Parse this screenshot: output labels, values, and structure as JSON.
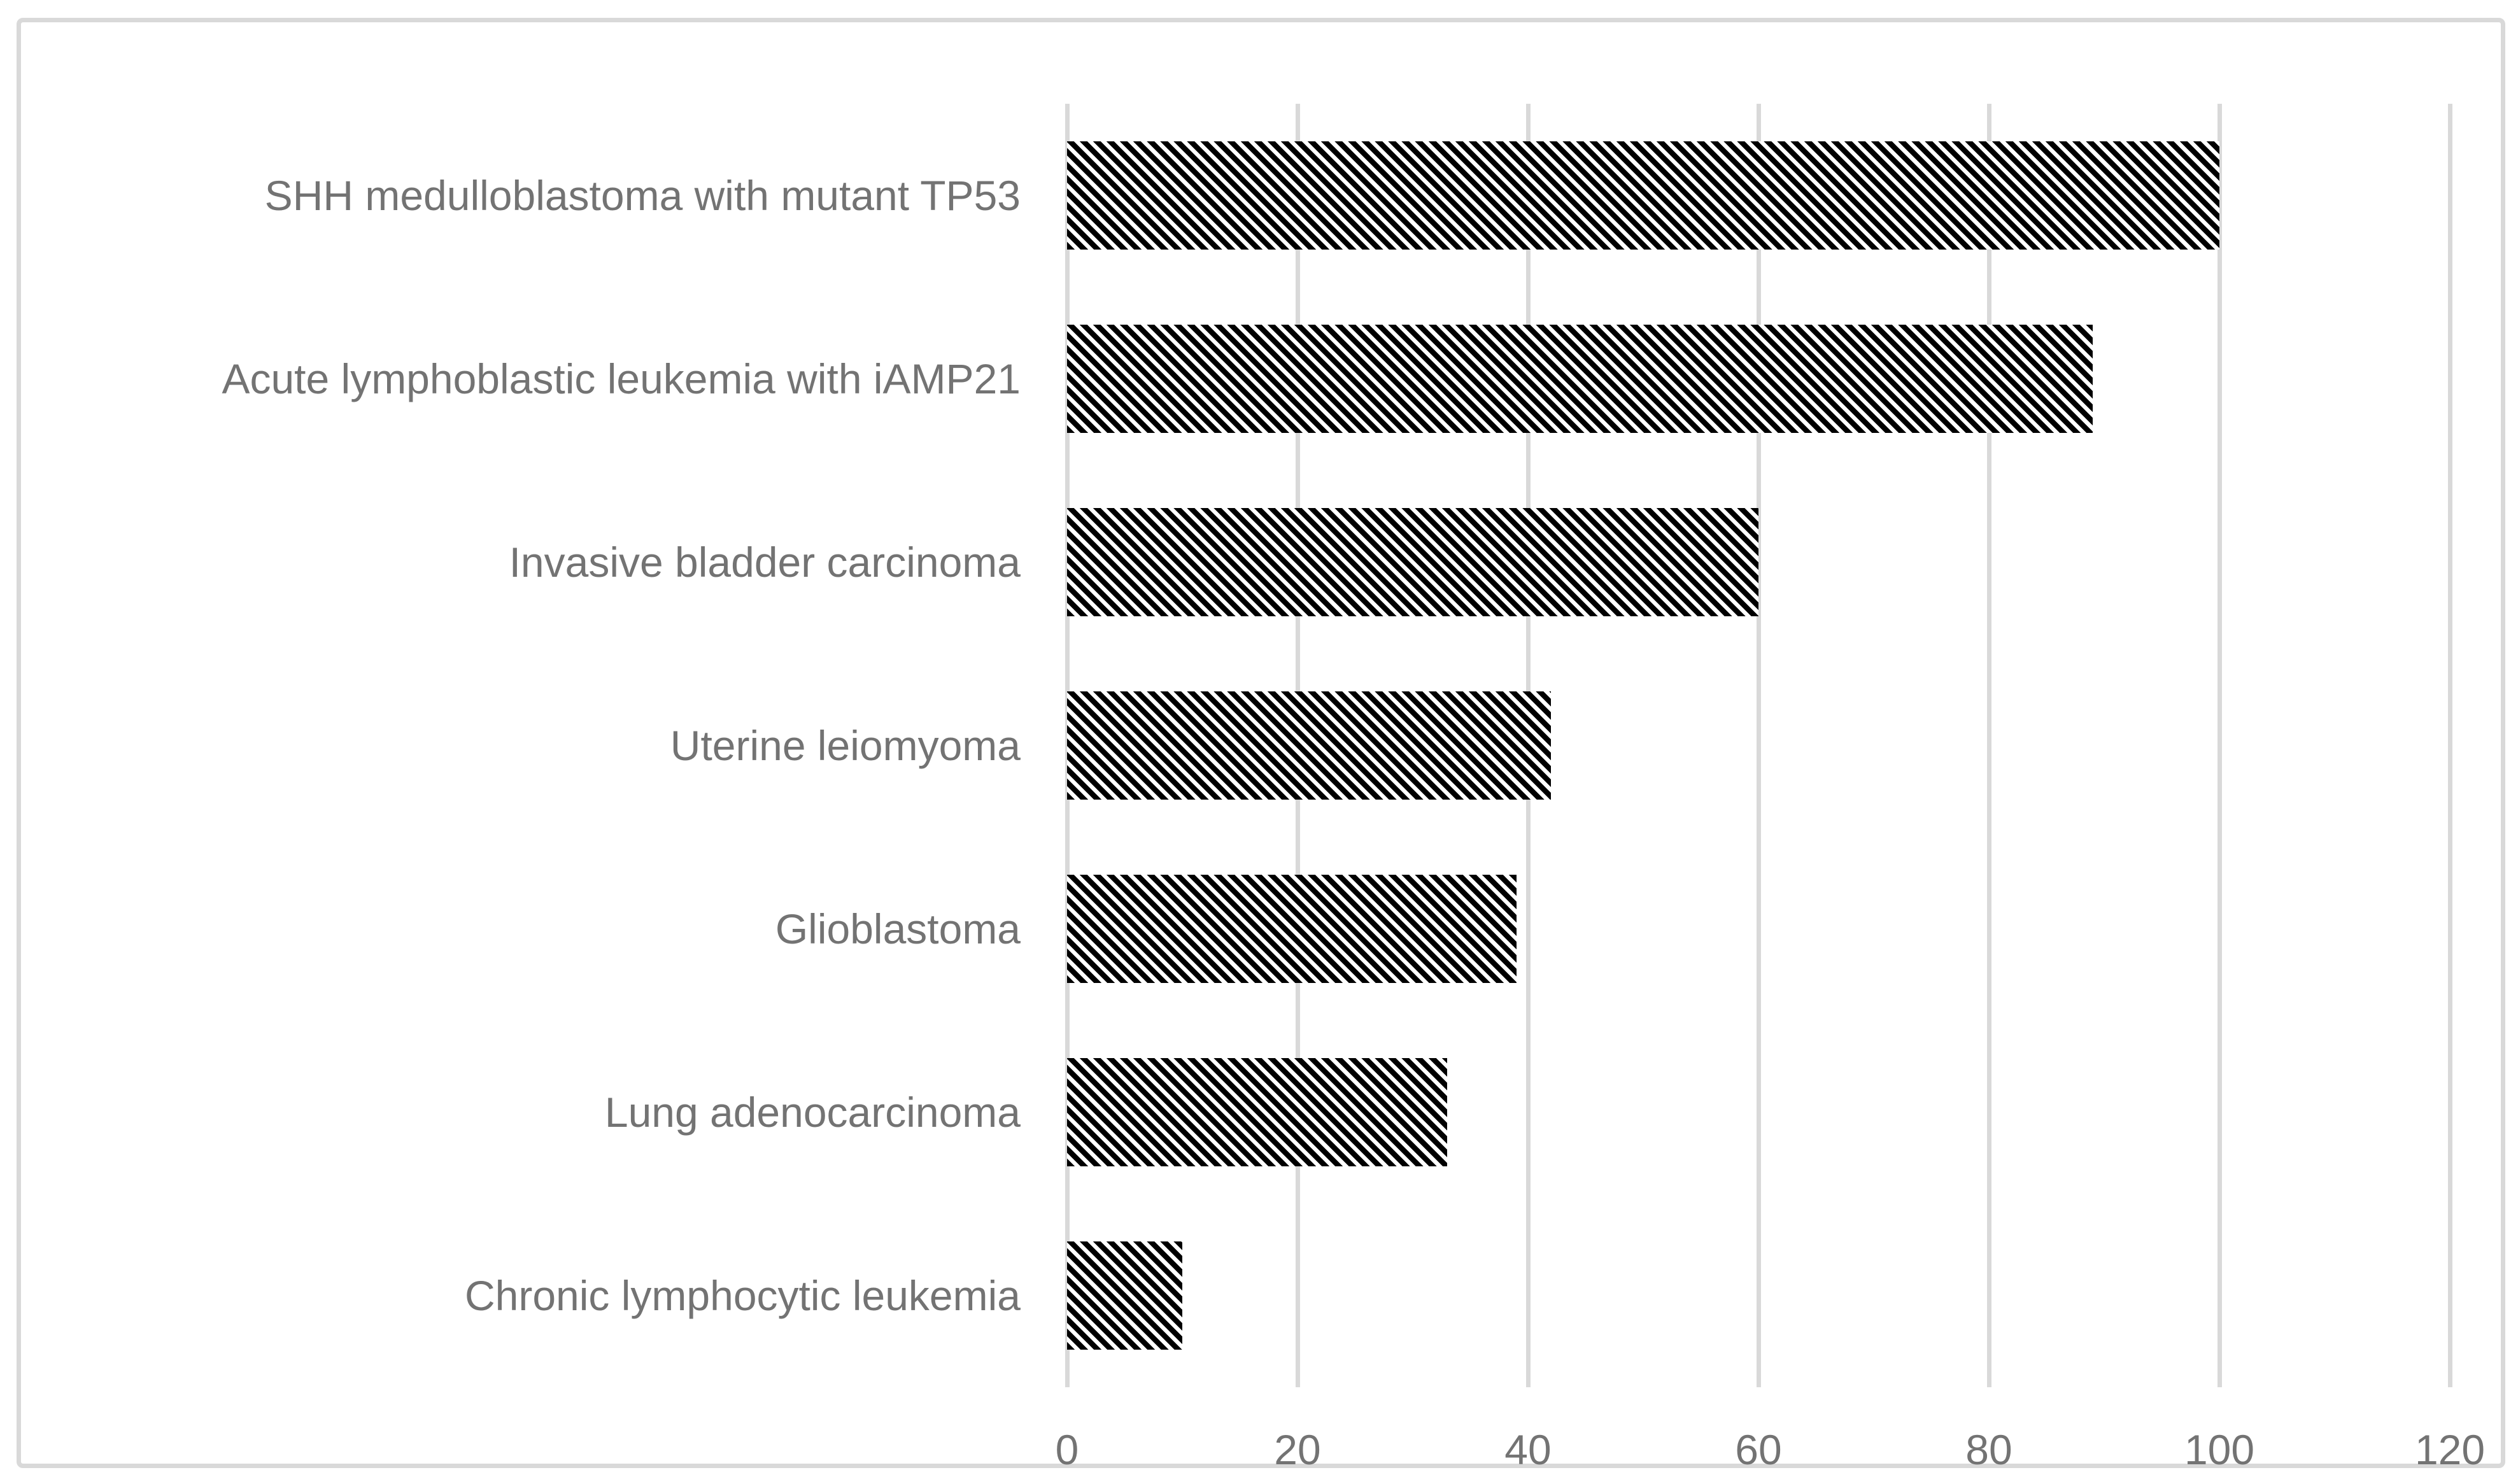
{
  "chart_data": {
    "type": "bar",
    "orientation": "horizontal",
    "title": "",
    "xlabel": "",
    "ylabel": "",
    "categories": [
      "SHH medulloblastoma with mutant TP53",
      "Acute lymphoblastic leukemia with iAMP21",
      "Invasive bladder carcinoma",
      "Uterine leiomyoma",
      "Glioblastoma",
      "Lung adenocarcinoma",
      "Chronic lymphocytic leukemia"
    ],
    "values": [
      100,
      89,
      60,
      42,
      39,
      33,
      10
    ],
    "xlim": [
      0,
      120
    ],
    "xticks": [
      0,
      20,
      40,
      60,
      80,
      100,
      120
    ],
    "grid": "vertical-gridlines-on",
    "legend": "none",
    "bar_style": "black-white diagonal hatch (dark downward diagonal)",
    "colors": {
      "bar_stripe": "#000000",
      "bar_background": "#ffffff",
      "gridline": "#d9d9d9",
      "frame_border": "#d9d9d9",
      "axis_text": "#737373",
      "background": "#ffffff"
    }
  }
}
